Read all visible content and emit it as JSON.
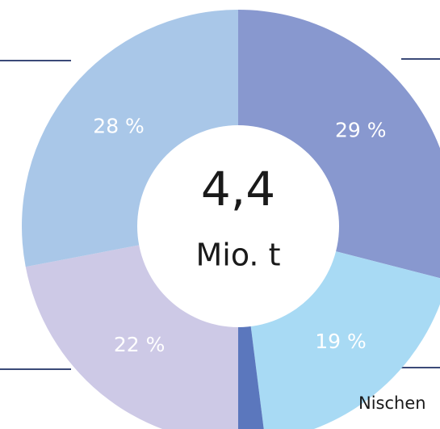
{
  "chart_data": {
    "type": "donut",
    "values": [
      29,
      19,
      2,
      22,
      28
    ],
    "value_labels": [
      "29 %",
      "19 %",
      null,
      "22 %",
      "28 %"
    ],
    "colors": [
      "#8898cf",
      "#a8daf4",
      "#5b77bd",
      "#cdc9e6",
      "#a9c7e8"
    ],
    "center_label": "4,4",
    "center_sublabel": "Mio. t",
    "annotations": [
      "Nischen"
    ]
  }
}
